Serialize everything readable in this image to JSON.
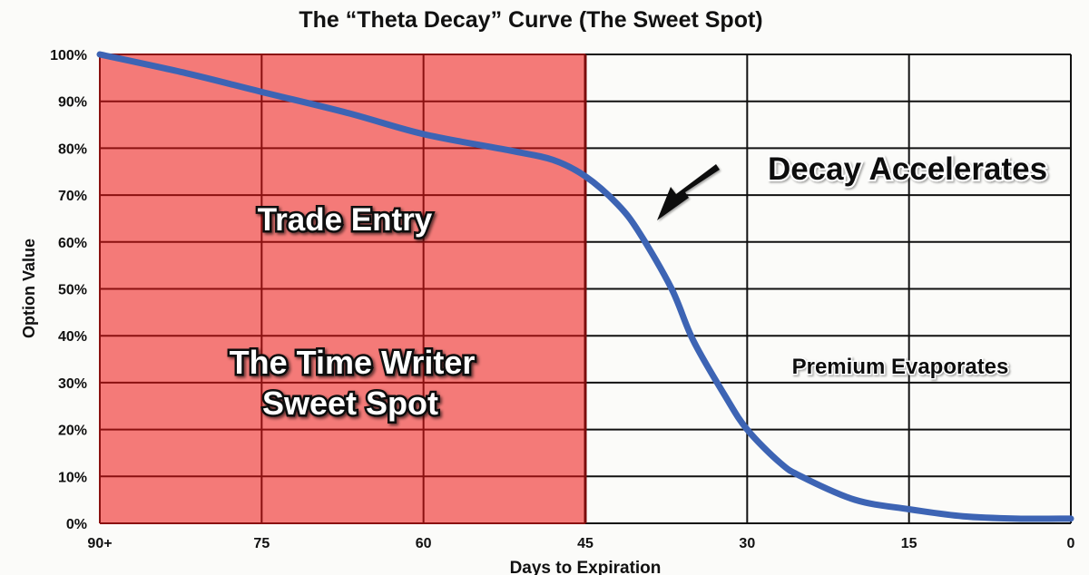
{
  "chart_data": {
    "type": "line",
    "title": "The “Theta Decay” Curve (The Sweet Spot)",
    "xlabel": "Days to Expiration",
    "ylabel": "Option Value",
    "xlim": [
      90,
      0
    ],
    "ylim": [
      0,
      100
    ],
    "x_ticks": [
      90,
      75,
      60,
      45,
      30,
      15,
      0
    ],
    "x_tick_labels": [
      "90+",
      "75",
      "60",
      "45",
      "30",
      "15",
      "0"
    ],
    "y_ticks": [
      0,
      10,
      20,
      30,
      40,
      50,
      60,
      70,
      80,
      90,
      100
    ],
    "y_tick_labels": [
      "0%",
      "10%",
      "20%",
      "30%",
      "40%",
      "50%",
      "60%",
      "70%",
      "80%",
      "90%",
      "100%"
    ],
    "grid": true,
    "series": [
      {
        "name": "Option Value",
        "color": "#3d64b4",
        "x": [
          90,
          82,
          75,
          67,
          60,
          52,
          48,
          45,
          42,
          40,
          37,
          35,
          32,
          30,
          27,
          25,
          20,
          15,
          10,
          5,
          0
        ],
        "y": [
          100,
          96,
          92,
          87.5,
          83,
          79.5,
          77.5,
          74,
          68,
          62,
          50,
          39,
          27,
          20,
          13,
          10,
          5,
          3,
          1.5,
          1,
          1
        ]
      }
    ],
    "shaded_region": {
      "from": 90,
      "to": 45,
      "color": "#f47a78"
    },
    "annotations": [
      {
        "text": "Trade Entry"
      },
      {
        "text": "The Time Writer"
      },
      {
        "text": "Sweet Spot"
      },
      {
        "text": "Decay Accelerates"
      },
      {
        "text": "Premium Evaporates"
      }
    ]
  }
}
